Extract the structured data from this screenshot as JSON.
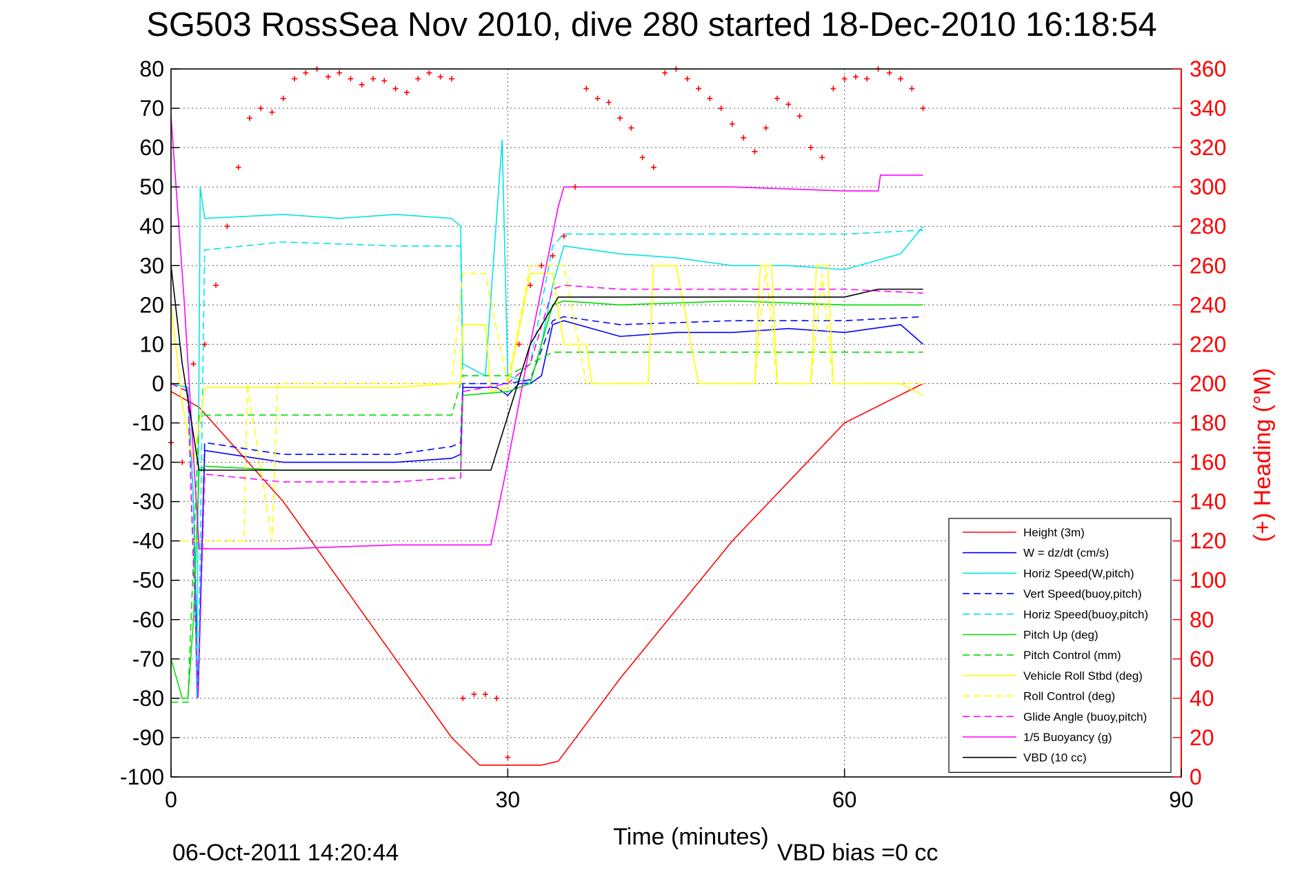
{
  "title": "SG503 RossSea Nov 2010, dive 280 started 18-Dec-2010 16:18:54",
  "footer": {
    "timestamp": "06-Oct-2011 14:20:44",
    "vbd_bias": "VBD bias =0 cc"
  },
  "chart_data": {
    "type": "line",
    "xlabel": "Time (minutes)",
    "ylabel": "",
    "y2label": "(+) Heading (°M)",
    "xlim": [
      0,
      90
    ],
    "ylim": [
      -100,
      80
    ],
    "y2lim": [
      0,
      360
    ],
    "xticks": [
      "0",
      "30",
      "60",
      "90"
    ],
    "yticks": [
      "80",
      "70",
      "60",
      "50",
      "40",
      "30",
      "20",
      "10",
      "0",
      "-10",
      "-20",
      "-30",
      "-40",
      "-50",
      "-60",
      "-70",
      "-80",
      "-90",
      "-100"
    ],
    "y2ticks": [
      "360",
      "340",
      "320",
      "300",
      "280",
      "260",
      "240",
      "220",
      "200",
      "180",
      "160",
      "140",
      "120",
      "100",
      "80",
      "60",
      "40",
      "20",
      "0"
    ],
    "grid": true,
    "legend_position": "bottom-right",
    "series": [
      {
        "name": "Height (3m)",
        "color": "#ff0000",
        "style": "solid",
        "x": [
          0,
          2.5,
          10,
          20,
          25,
          27.5,
          30,
          33,
          34.5,
          40,
          50,
          60,
          67
        ],
        "y": [
          -2,
          -6,
          -30,
          -70,
          -90,
          -97,
          -97,
          -97,
          -96,
          -75,
          -40,
          -10,
          0
        ]
      },
      {
        "name": "W = dz/dt (cm/s)",
        "color": "#0000ff",
        "style": "solid",
        "x": [
          0,
          1.5,
          2,
          2.4,
          3,
          10,
          20,
          25,
          25.8,
          26,
          29,
          30,
          31,
          32,
          33,
          34,
          35,
          40,
          45,
          50,
          55,
          60,
          65,
          67
        ],
        "y": [
          0,
          -1,
          -30,
          -80,
          -17,
          -20,
          -20,
          -19,
          -18,
          -1,
          -1,
          -3,
          0,
          0,
          2,
          15,
          16,
          12,
          13,
          13,
          14,
          13,
          15,
          10
        ]
      },
      {
        "name": "Horiz Speed(W,pitch)",
        "color": "#00e5e5",
        "style": "solid",
        "x": [
          0,
          1.5,
          2,
          2.3,
          2.6,
          3,
          10,
          15,
          20,
          25,
          25.8,
          26,
          28,
          29.5,
          30,
          32,
          33,
          34,
          35,
          40,
          45,
          50,
          55,
          60,
          65,
          67
        ],
        "y": [
          0,
          -1,
          -30,
          -80,
          50,
          42,
          43,
          42,
          43,
          42,
          40,
          5,
          2,
          62,
          2,
          0,
          10,
          25,
          35,
          33,
          32,
          30,
          30,
          29,
          33,
          40
        ]
      },
      {
        "name": "Vert Speed(buoy,pitch)",
        "color": "#0000ff",
        "style": "dashed",
        "x": [
          0,
          1.5,
          2.4,
          3,
          10,
          20,
          25,
          25.8,
          26,
          30,
          32,
          34,
          35,
          40,
          50,
          60,
          67
        ],
        "y": [
          0,
          -2,
          -80,
          -15,
          -18,
          -18,
          -16,
          -15,
          0,
          0,
          1,
          16,
          17,
          15,
          16,
          16,
          17
        ]
      },
      {
        "name": "Horiz Speed(buoy,pitch)",
        "color": "#00e5e5",
        "style": "dashed",
        "x": [
          0,
          1.5,
          2.4,
          3,
          10,
          20,
          25,
          25.8,
          26,
          30,
          32,
          34,
          35,
          40,
          50,
          60,
          67
        ],
        "y": [
          0,
          -2,
          -80,
          34,
          36,
          35,
          35,
          35,
          2,
          2,
          5,
          35,
          38,
          38,
          38,
          38,
          39
        ]
      },
      {
        "name": "Pitch Up (deg)",
        "color": "#00dd00",
        "style": "solid",
        "x": [
          0,
          1,
          1.5,
          2,
          2.5,
          3,
          10,
          20,
          25,
          25.8,
          26,
          30,
          32,
          34,
          35,
          40,
          50,
          60,
          67
        ],
        "y": [
          -70,
          -80,
          -80,
          -60,
          -22,
          -21,
          -22,
          -22,
          -22,
          -22,
          -3,
          -2,
          0,
          20,
          21,
          20,
          21,
          20,
          20
        ]
      },
      {
        "name": "Pitch Control (mm)",
        "color": "#00dd00",
        "style": "dashed",
        "x": [
          0,
          1.5,
          2.5,
          3,
          10,
          20,
          25,
          26,
          30,
          32,
          34,
          35,
          40,
          50,
          60,
          67
        ],
        "y": [
          -81,
          -81,
          -8,
          -8,
          -8,
          -8,
          -8,
          2,
          2,
          5,
          8,
          8,
          8,
          8,
          8,
          8
        ]
      },
      {
        "name": "Vehicle Roll Stbd (deg)",
        "color": "#ffff00",
        "style": "solid",
        "x": [
          0,
          1,
          2,
          3,
          10,
          20,
          25,
          25.8,
          26,
          28,
          28.5,
          30,
          32,
          34,
          35,
          37,
          37.5,
          42.5,
          43,
          45,
          47,
          52,
          52.5,
          53.5,
          54,
          57,
          57.5,
          58.5,
          59,
          65,
          67
        ],
        "y": [
          20,
          -5,
          -20,
          -1,
          -1,
          -1,
          0,
          0,
          15,
          15,
          -2,
          -1,
          28,
          28,
          10,
          10,
          0,
          0,
          30,
          30,
          0,
          0,
          30,
          30,
          0,
          0,
          30,
          30,
          0,
          0,
          -3
        ]
      },
      {
        "name": "Roll Control (deg)",
        "color": "#ffff00",
        "style": "dashed",
        "x": [
          0,
          1.5,
          2,
          6.5,
          6.8,
          9,
          9.5,
          20,
          25,
          26,
          28,
          30,
          32,
          35,
          37,
          42.5,
          43,
          45,
          47,
          52,
          53,
          54,
          57,
          58,
          59,
          67
        ],
        "y": [
          -40,
          -40,
          -40,
          -40,
          0,
          -40,
          0,
          0,
          0,
          28,
          28,
          0,
          30,
          30,
          0,
          0,
          30,
          30,
          0,
          0,
          30,
          0,
          0,
          28,
          0,
          0
        ]
      },
      {
        "name": "Glide Angle (buoy,pitch)",
        "color": "#ff00ff",
        "style": "dashed",
        "x": [
          0,
          1.5,
          2.4,
          3,
          10,
          20,
          25,
          25.8,
          26,
          30,
          32,
          34,
          35,
          40,
          50,
          60,
          67
        ],
        "y": [
          0,
          -2,
          -80,
          -23,
          -25,
          -25,
          -24,
          -24,
          -2,
          0,
          5,
          24,
          25,
          24,
          24,
          24,
          23
        ]
      },
      {
        "name": "1/5 Buoyancy (g)",
        "color": "#ff00ff",
        "style": "solid",
        "x": [
          0,
          1.2,
          2.5,
          10,
          20,
          28.5,
          30,
          32,
          34.5,
          35,
          40,
          50,
          60,
          63,
          63.2,
          67
        ],
        "y": [
          68,
          20,
          -42,
          -42,
          -41,
          -41,
          -20,
          10,
          45,
          50,
          50,
          50,
          49,
          49,
          53,
          53
        ]
      },
      {
        "name": "VBD (10 cc)",
        "color": "#000000",
        "style": "solid",
        "x": [
          0,
          1,
          2.5,
          10,
          20,
          26,
          28.5,
          32,
          34.5,
          35,
          45,
          50,
          60,
          63,
          67
        ],
        "y": [
          30,
          5,
          -22,
          -22,
          -22,
          -22,
          -22,
          10,
          22,
          22,
          22,
          22,
          22,
          24,
          24
        ]
      },
      {
        "name": "Heading",
        "color": "#ff0000",
        "style": "markers-plus",
        "axis": "right",
        "x": [
          0,
          1,
          2,
          3,
          4,
          5,
          6,
          7,
          8,
          9,
          10,
          11,
          12,
          13,
          14,
          15,
          16,
          17,
          18,
          19,
          20,
          21,
          22,
          23,
          24,
          25,
          26,
          27,
          28,
          29,
          30,
          31,
          32,
          33,
          34,
          35,
          36,
          37,
          38,
          39,
          40,
          41,
          42,
          43,
          44,
          45,
          46,
          47,
          48,
          49,
          50,
          51,
          52,
          53,
          54,
          55,
          56,
          57,
          58,
          59,
          60,
          61,
          62,
          63,
          64,
          65,
          66,
          67
        ],
        "y": [
          170,
          160,
          210,
          220,
          250,
          280,
          310,
          335,
          340,
          338,
          345,
          355,
          358,
          360,
          356,
          358,
          355,
          352,
          355,
          354,
          350,
          348,
          355,
          358,
          356,
          355,
          40,
          42,
          42,
          40,
          10,
          220,
          250,
          260,
          265,
          275,
          300,
          350,
          345,
          343,
          335,
          330,
          315,
          310,
          358,
          360,
          355,
          350,
          345,
          340,
          332,
          325,
          318,
          330,
          345,
          342,
          336,
          320,
          315,
          350,
          355,
          356,
          355,
          360,
          358,
          355,
          350,
          340
        ]
      }
    ]
  }
}
